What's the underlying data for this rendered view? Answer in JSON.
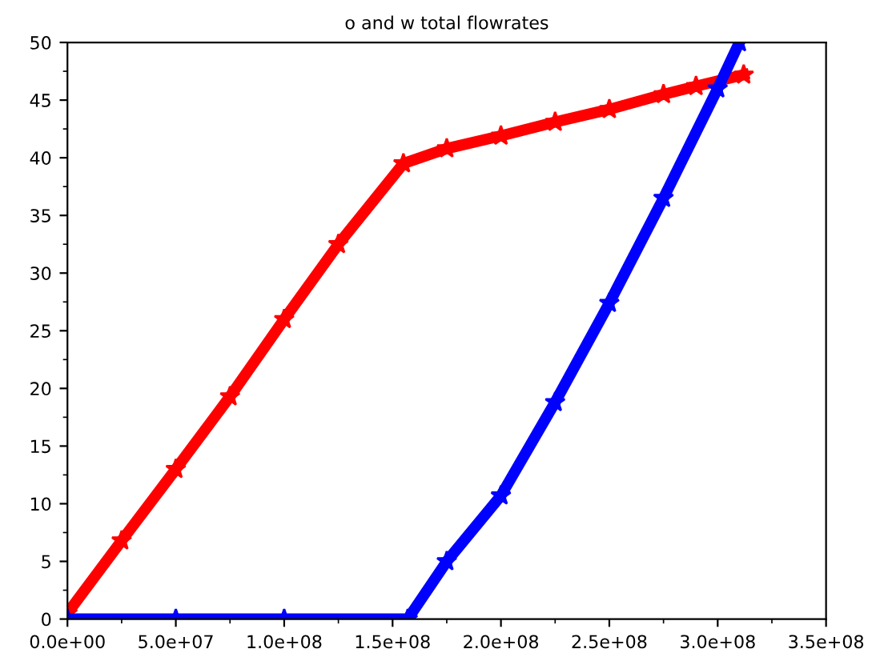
{
  "chart_data": {
    "type": "line",
    "title": "o and w total flowrates",
    "marker": "star",
    "line_style": "solid",
    "grid": false,
    "legend": false,
    "xlim": [
      0,
      350000000
    ],
    "ylim": [
      0,
      50
    ],
    "xticks": [
      {
        "value": 0,
        "label": "0.0e+00"
      },
      {
        "value": 50000000,
        "label": "5.0e+07"
      },
      {
        "value": 100000000,
        "label": "1.0e+08"
      },
      {
        "value": 150000000,
        "label": "1.5e+08"
      },
      {
        "value": 200000000,
        "label": "2.0e+08"
      },
      {
        "value": 250000000,
        "label": "2.5e+08"
      },
      {
        "value": 300000000,
        "label": "3.0e+08"
      },
      {
        "value": 350000000,
        "label": "3.5e+08"
      }
    ],
    "yticks": [
      0,
      5,
      10,
      15,
      20,
      25,
      30,
      35,
      40,
      45,
      50
    ],
    "series": [
      {
        "color": "#ff0000",
        "x": [
          0,
          25000000,
          50000000,
          75000000,
          100000000,
          125000000,
          155000000,
          175000000,
          200000000,
          225000000,
          250000000,
          275000000,
          290000000,
          312000000
        ],
        "values": [
          0.5,
          6.8,
          13,
          19.3,
          26,
          32.5,
          39.5,
          40.8,
          41.9,
          43.1,
          44.2,
          45.5,
          46.2,
          47.2
        ]
      },
      {
        "color": "#0000ff",
        "x": [
          0,
          50000000,
          100000000,
          157000000,
          175000000,
          200000000,
          225000000,
          250000000,
          275000000,
          300000000,
          310000000
        ],
        "values": [
          0,
          0,
          0,
          0,
          5,
          10.7,
          18.8,
          27.4,
          36.5,
          46,
          50
        ]
      }
    ]
  }
}
